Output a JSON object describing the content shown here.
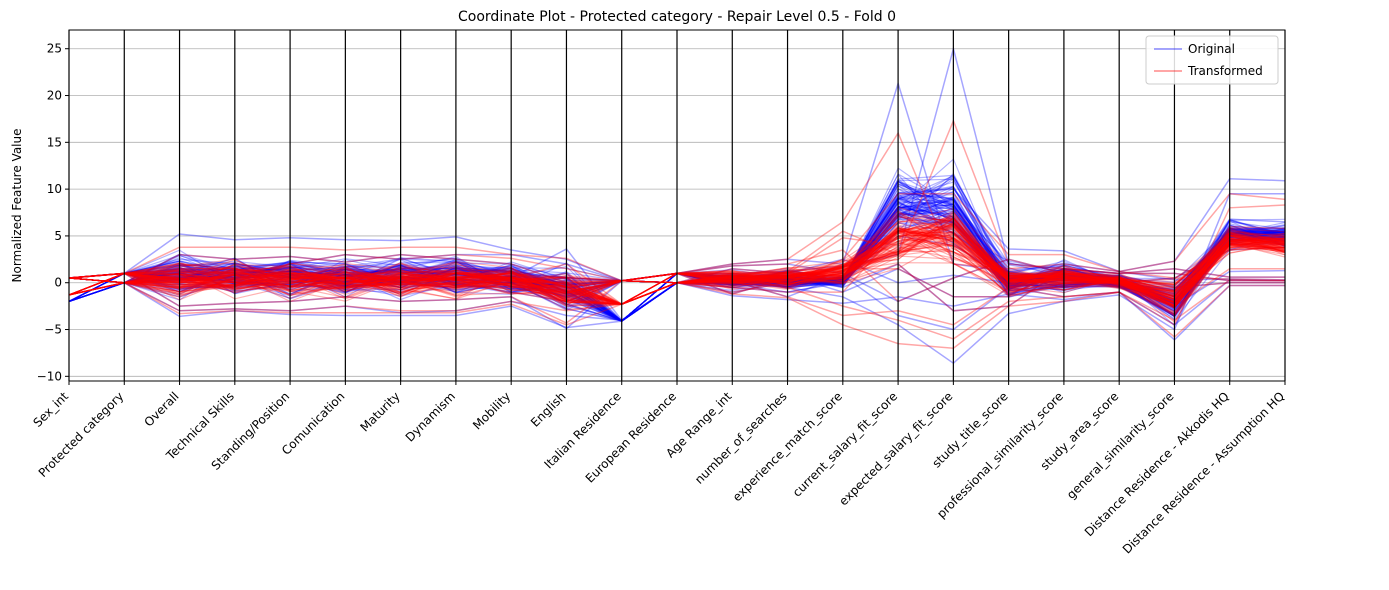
{
  "chart_data": {
    "type": "parallel-coordinates",
    "title": "Coordinate Plot - Protected category - Repair Level 0.5 - Fold 0",
    "xlabel": "",
    "ylabel": "Normalized Feature Value",
    "ylim": [
      -10.5,
      27
    ],
    "yticks": [
      -10,
      -5,
      0,
      5,
      10,
      15,
      20,
      25
    ],
    "grid": true,
    "legend_position": "top-right",
    "categories": [
      "Sex_int",
      "Protected category",
      "Overall",
      "Technical Skills",
      "Standing/Position",
      "Comunication",
      "Maturity",
      "Dynamism",
      "Mobility",
      "English",
      "Italian Residence",
      "European Residence",
      "Age Range_int",
      "number_of_searches",
      "experience_match_score",
      "current_salary_fit_score",
      "expected_salary_fit_score",
      "study_title_score",
      "professional_similarity_score",
      "study_area_score",
      "general_similarity_score",
      "Distance Residence - Akkodis HQ",
      "Distance Residence - Assumption HQ"
    ],
    "series": [
      {
        "name": "Original",
        "color": "#0000ff",
        "min": [
          -2,
          0,
          -3.6,
          -3,
          -3.4,
          -3.5,
          -3.5,
          -3.5,
          -2.5,
          -4.9,
          -4.1,
          0,
          -1.4,
          -1.8,
          -2.2,
          -4.5,
          -8.6,
          -3.3,
          -2.3,
          -1.3,
          -6.2,
          -0.5,
          -0.5
        ],
        "max": [
          0.5,
          1.0,
          5.2,
          4.6,
          4.8,
          4.6,
          4.8,
          4.9,
          3.5,
          3.6,
          0.2,
          1.0,
          2.0,
          2.5,
          2.5,
          21.3,
          25.0,
          3.6,
          3.4,
          1.5,
          2.3,
          11.1,
          10.9
        ],
        "profiles": [
          [
            -2,
            0,
            -3.6,
            -3,
            -3.4,
            -3.5,
            -3.5,
            -3.5,
            -2.5,
            -4.8,
            -4.1,
            0,
            -1.4,
            -1.8,
            -2.2,
            -1.5,
            -2.5,
            -1.2,
            -1.8,
            -1.0,
            -6.1,
            -0.3,
            -0.3
          ],
          [
            0.5,
            1.0,
            5.2,
            4.6,
            4.8,
            4.6,
            4.5,
            4.9,
            3.5,
            2.5,
            0.2,
            1.0,
            2.0,
            2.5,
            2.0,
            21.3,
            2.0,
            1.2,
            2.0,
            1.2,
            0.3,
            0.4,
            0.3
          ],
          [
            0.5,
            1.0,
            2.5,
            2.0,
            1.2,
            0.8,
            1.5,
            1.5,
            1.0,
            0.5,
            0.2,
            1.0,
            1.0,
            1.2,
            1.8,
            3.0,
            25.0,
            2.0,
            1.5,
            1.0,
            1.0,
            0.2,
            0.2
          ],
          [
            -2,
            0,
            -1.5,
            0.5,
            1.0,
            -0.5,
            0.5,
            1.0,
            0.5,
            3.6,
            -4.0,
            0,
            -1.0,
            0,
            0.5,
            9.6,
            10.0,
            3.6,
            3.4,
            1.2,
            2.3,
            11.1,
            10.9
          ],
          [
            0.5,
            1.0,
            0.5,
            -1.0,
            0,
            0.5,
            -0.5,
            0,
            -1.0,
            -2.0,
            0.2,
            1.0,
            0,
            -0.5,
            -1.5,
            -4.5,
            -8.6,
            -3.3,
            -2.0,
            -1.3,
            -5.0,
            9.5,
            9.5
          ],
          [
            -2,
            0,
            3.0,
            2.5,
            2.8,
            2.2,
            3.0,
            2.5,
            2.0,
            0,
            -4.0,
            0,
            1.5,
            1.0,
            2.5,
            0,
            0.8,
            0,
            -0.8,
            0.5,
            -1.5,
            6.8,
            6.5
          ],
          [
            0.5,
            1.0,
            -2.5,
            -2.2,
            -2.0,
            -1.5,
            -2.0,
            -1.8,
            -1.5,
            -4.9,
            0.2,
            1.0,
            0.5,
            0.8,
            -1.0,
            1.5,
            -1.5,
            -1.5,
            0,
            0,
            0.5,
            3.5,
            3.8
          ],
          [
            -2,
            0,
            1.0,
            0,
            -0.5,
            1.5,
            0,
            -0.5,
            0,
            1.0,
            -4.1,
            0,
            -0.5,
            -1.0,
            0,
            5.0,
            4.0,
            0.5,
            0.5,
            -0.5,
            -2.5,
            1.2,
            1.3
          ],
          [
            0.5,
            1.0,
            -1.0,
            1.5,
            0.5,
            -1.0,
            1.0,
            0.5,
            1.5,
            -0.5,
            0.2,
            1.0,
            1.8,
            2.0,
            1.0,
            -2.0,
            0.5,
            2.5,
            1.0,
            0.8,
            -0.5,
            0,
            0
          ],
          [
            0.5,
            1.0,
            0,
            0.8,
            2.0,
            3.0,
            2.5,
            3.0,
            3.0,
            2.0,
            0.2,
            1.0,
            -1.2,
            0.5,
            -0.5,
            2.0,
            -3.0,
            -2.5,
            1.5,
            1.0,
            1.5,
            0.6,
            0.6
          ],
          [
            -2,
            0,
            -3.0,
            -2.8,
            -3.0,
            -2.5,
            -3.2,
            -3.0,
            -2.0,
            -3.5,
            -4.0,
            0,
            0.2,
            -1.5,
            0.8,
            -3.5,
            -5.0,
            -0.5,
            -1.5,
            -1.0,
            -4.5,
            0.3,
            0.2
          ]
        ]
      },
      {
        "name": "Transformed",
        "color": "#ff0000",
        "min": [
          -1.3,
          0,
          -3.3,
          -3,
          -3.2,
          -3.2,
          -3.2,
          -3.2,
          -2.3,
          -4.5,
          -2.3,
          0,
          -1.2,
          -1.6,
          -4.5,
          -6.5,
          -7.0,
          -2.5,
          -2.0,
          -1.0,
          -5.8,
          -0.5,
          -0.5
        ],
        "max": [
          0.5,
          1.0,
          3.8,
          3.8,
          3.8,
          3.5,
          3.8,
          3.8,
          3.0,
          2.6,
          0.2,
          1.0,
          2.0,
          2.5,
          6.5,
          16.0,
          17.3,
          3.0,
          3.0,
          1.4,
          2.3,
          9.5,
          8.9
        ],
        "profiles": [
          [
            -1.3,
            0,
            -3.3,
            -3,
            -3.2,
            -3.2,
            -3.2,
            -3.2,
            -2.3,
            -4.5,
            -2.3,
            0,
            -1.2,
            -1.6,
            -4.5,
            -6.5,
            -7.0,
            -2.5,
            -2.0,
            -1.0,
            -5.8,
            -0.3,
            -0.3
          ],
          [
            0.5,
            1.0,
            3.8,
            3.8,
            3.8,
            3.5,
            3.8,
            3.8,
            3.0,
            2.6,
            0.2,
            1.0,
            2.0,
            2.5,
            6.5,
            16.0,
            2.0,
            1.5,
            2.0,
            1.2,
            0.5,
            0.4,
            0.3
          ],
          [
            0.5,
            1.0,
            2.0,
            1.5,
            1.0,
            0.5,
            1.2,
            1.0,
            0.8,
            0.5,
            0.2,
            1.0,
            1.0,
            1.2,
            5.5,
            3.0,
            17.3,
            2.0,
            1.5,
            1.0,
            1.0,
            0.2,
            0.2
          ],
          [
            -1.3,
            0,
            -1.5,
            0.5,
            1.0,
            -0.5,
            0.5,
            1.0,
            0.5,
            2.0,
            -2.3,
            0,
            -1.0,
            0,
            2.5,
            9.5,
            9.5,
            3.0,
            3.0,
            1.2,
            2.3,
            9.5,
            8.9
          ],
          [
            0.5,
            1.0,
            0.5,
            -1.0,
            0,
            0.5,
            -0.5,
            0,
            -1.0,
            -2.0,
            0.2,
            1.0,
            0,
            -0.5,
            -2.5,
            -4.0,
            -6.0,
            -2.0,
            -1.5,
            -1.0,
            -4.5,
            8.0,
            8.3
          ],
          [
            -1.3,
            0,
            3.0,
            2.5,
            2.8,
            2.2,
            3.0,
            2.5,
            2.0,
            0,
            -2.3,
            0,
            1.5,
            1.0,
            4.8,
            4.0,
            7.5,
            0,
            -0.8,
            0.5,
            -1.5,
            6.0,
            5.8
          ],
          [
            0.5,
            1.0,
            -2.5,
            -2.2,
            -2.0,
            -1.5,
            -2.0,
            -1.8,
            -1.5,
            -4.3,
            0.2,
            1.0,
            0.5,
            0.8,
            1.5,
            1.5,
            -1.5,
            -1.5,
            0,
            0,
            0.5,
            3.5,
            3.8
          ],
          [
            -1.3,
            0,
            1.0,
            0,
            -0.5,
            1.5,
            0,
            -0.5,
            0,
            1.0,
            -2.3,
            0,
            -0.5,
            -1.0,
            -1.0,
            5.5,
            4.5,
            0.5,
            0.5,
            -0.5,
            -2.5,
            1.5,
            1.5
          ],
          [
            0.5,
            1.0,
            -1.0,
            1.5,
            0.5,
            -1.0,
            1.0,
            0.5,
            1.5,
            -0.5,
            0.2,
            1.0,
            1.8,
            2.0,
            3.5,
            -2.0,
            0.5,
            2.5,
            1.0,
            0.8,
            -0.5,
            0,
            0
          ],
          [
            0.5,
            1.0,
            0,
            0.8,
            2.0,
            3.0,
            2.5,
            3.0,
            2.6,
            1.5,
            0.2,
            1.0,
            -1.2,
            0.5,
            0,
            2.0,
            -3.0,
            -2.5,
            1.5,
            1.0,
            1.5,
            0.6,
            0.6
          ],
          [
            -1.3,
            0,
            -3.0,
            -2.8,
            -3.0,
            -2.5,
            -3.0,
            -3.0,
            -2.0,
            -3.0,
            -2.3,
            0,
            0.2,
            -1.5,
            -3.5,
            -3.0,
            -4.5,
            -0.5,
            -1.5,
            -1.0,
            -4.0,
            0.3,
            0.2
          ]
        ]
      }
    ]
  }
}
